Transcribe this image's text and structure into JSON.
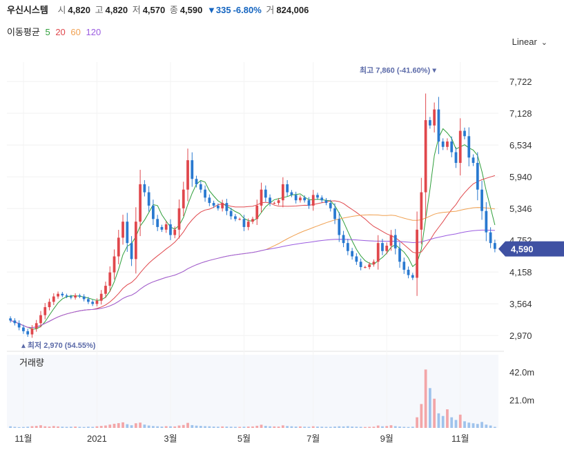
{
  "header": {
    "name": "우신시스템",
    "open_label": "시",
    "open": "4,820",
    "high_label": "고",
    "high": "4,820",
    "low_label": "저",
    "low": "4,570",
    "close_label": "종",
    "close": "4,590",
    "change": "▼335",
    "change_pct": "-6.80%",
    "volume_label": "거",
    "volume": "824,006"
  },
  "ma_legend": {
    "title": "이동평균",
    "items": [
      {
        "label": "5",
        "color": "#2e9e3a"
      },
      {
        "label": "20",
        "color": "#e0474c"
      },
      {
        "label": "60",
        "color": "#f0a050"
      },
      {
        "label": "120",
        "color": "#9a5be0"
      }
    ]
  },
  "scale_toggle": "Linear",
  "volume_panel_title": "거래량",
  "colors": {
    "up": "#e0474c",
    "down": "#2979d0",
    "current_price_bg": "#3f51a3"
  },
  "chart_data": {
    "type": "candlestick",
    "y_ticks": [
      "7,722",
      "7,128",
      "6,534",
      "5,940",
      "5,346",
      "4,752",
      "4,158",
      "3,564",
      "2,970"
    ],
    "y_tick_values": [
      7722,
      7128,
      6534,
      5940,
      5346,
      4752,
      4158,
      3564,
      2970
    ],
    "ylim": [
      2790,
      8060
    ],
    "x_ticks": [
      "11월",
      "2021",
      "3월",
      "5월",
      "7월",
      "9월",
      "11월"
    ],
    "x_tick_index": [
      3,
      20,
      37,
      54,
      70,
      87,
      104
    ],
    "volume_ticks": [
      "42.0m",
      "21.0m"
    ],
    "volume_tick_values": [
      42,
      21
    ],
    "volume_ylim": [
      0,
      52
    ],
    "current_price": "4,590",
    "current_price_value": 4590,
    "annotations": {
      "high": {
        "label": "최고 7,860 (-41.60%)",
        "value": 7860,
        "index": 98
      },
      "low": {
        "label": "최저 2,970 (54.55%)",
        "value": 2970,
        "index": 3
      }
    },
    "close": [
      3250,
      3200,
      3120,
      3050,
      2990,
      3100,
      3200,
      3350,
      3500,
      3600,
      3700,
      3750,
      3720,
      3700,
      3680,
      3720,
      3700,
      3650,
      3600,
      3560,
      3620,
      3750,
      3900,
      4150,
      4450,
      4800,
      5100,
      4700,
      4400,
      5100,
      5800,
      5650,
      5400,
      5150,
      5000,
      4950,
      5050,
      4850,
      4950,
      5350,
      5700,
      6250,
      5900,
      5800,
      5700,
      5550,
      5450,
      5400,
      5350,
      5450,
      5300,
      5200,
      5150,
      5150,
      5000,
      5100,
      5150,
      5400,
      5700,
      5550,
      5450,
      5450,
      5500,
      5800,
      5650,
      5600,
      5500,
      5550,
      5500,
      5400,
      5600,
      5550,
      5500,
      5450,
      5350,
      5150,
      4850,
      4700,
      4550,
      4450,
      4350,
      4250,
      4250,
      4300,
      4350,
      4700,
      4550,
      4650,
      4850,
      4600,
      4350,
      4200,
      4100,
      4050,
      4950,
      5650,
      7000,
      6900,
      7200,
      6600,
      6500,
      6600,
      6400,
      6200,
      6800,
      6700,
      6300,
      6200,
      5700,
      5300,
      4900,
      4700,
      4590
    ],
    "volume_m": [
      1.2,
      0.8,
      0.6,
      0.7,
      0.9,
      1.3,
      1.5,
      2.0,
      1.2,
      1.0,
      1.4,
      1.1,
      0.9,
      0.8,
      0.9,
      1.0,
      0.8,
      0.7,
      0.9,
      0.8,
      1.2,
      1.5,
      1.8,
      2.5,
      3.1,
      3.6,
      4.2,
      2.8,
      2.0,
      3.5,
      4.0,
      2.5,
      1.8,
      1.4,
      1.2,
      1.0,
      1.3,
      1.2,
      1.1,
      1.8,
      2.2,
      3.8,
      2.1,
      1.7,
      1.5,
      1.3,
      1.2,
      1.0,
      0.9,
      1.1,
      1.0,
      0.9,
      0.8,
      0.8,
      0.9,
      1.0,
      1.1,
      1.6,
      2.4,
      1.5,
      1.2,
      1.1,
      1.0,
      1.9,
      1.4,
      1.2,
      1.0,
      1.1,
      0.9,
      0.8,
      1.2,
      1.0,
      0.9,
      0.8,
      0.8,
      1.0,
      1.2,
      1.1,
      1.3,
      1.0,
      0.9,
      0.8,
      0.7,
      0.8,
      0.9,
      1.8,
      1.2,
      1.4,
      2.0,
      1.3,
      1.0,
      0.8,
      0.7,
      0.9,
      8.0,
      18.0,
      44.0,
      30.0,
      22.0,
      11.0,
      9.0,
      14.0,
      8.0,
      6.0,
      10.0,
      5.0,
      4.0,
      3.5,
      3.0,
      4.5,
      2.5,
      1.8,
      0.8
    ]
  }
}
